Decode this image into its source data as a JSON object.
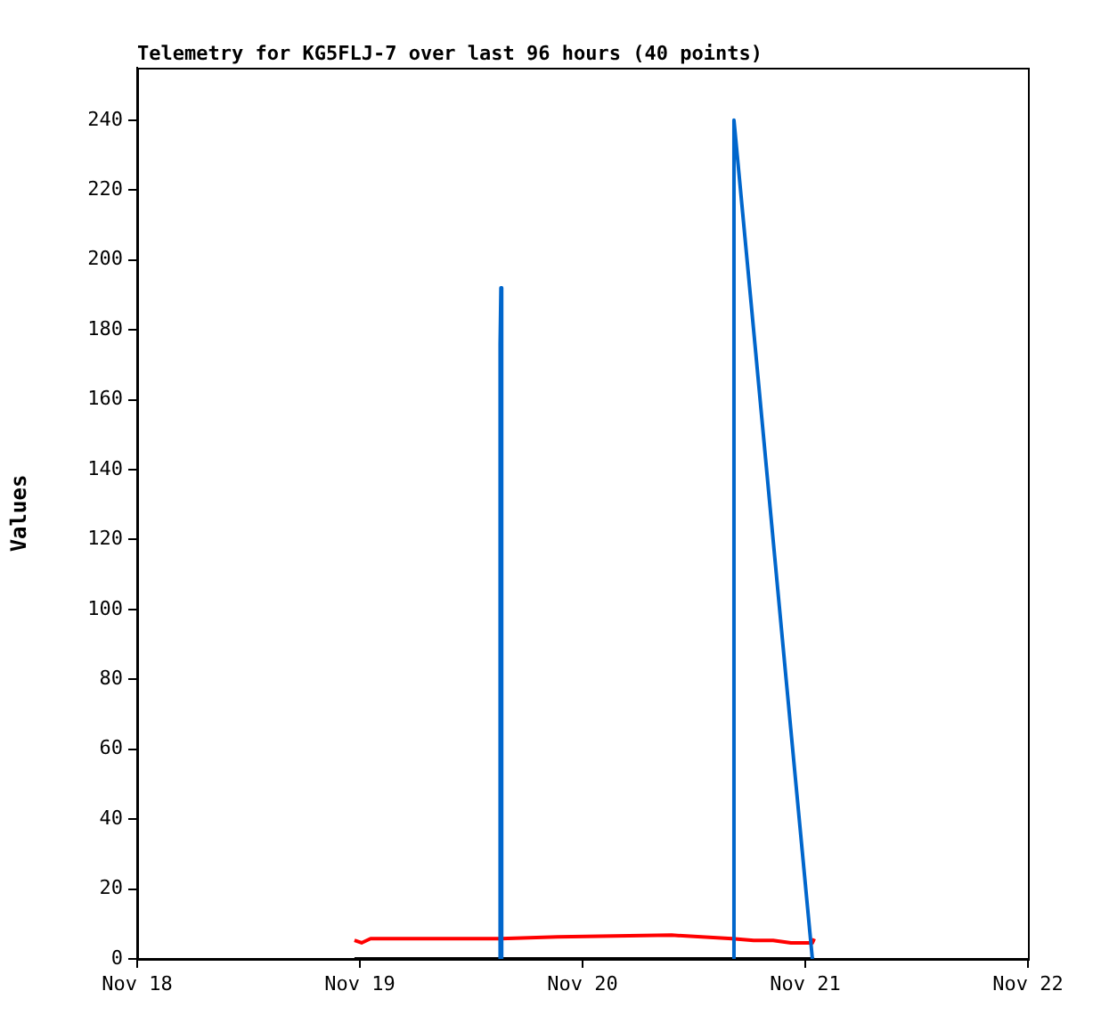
{
  "chart_data": {
    "type": "line",
    "title": "Telemetry for KG5FLJ-7 over last 96 hours (40 points)",
    "ylabel": "Values",
    "x": [
      "--11-18T23:25",
      "--11-19T00:11",
      "--11-19T01:09",
      "--11-19T15:02",
      "--11-19T15:07",
      "--11-19T15:12",
      "--11-19T15:17",
      "--11-19T21:19",
      "--11-20T09:36",
      "--11-20T16:08",
      "--11-20T16:19",
      "--11-20T18:26",
      "--11-20T20:32",
      "--11-20T22:28",
      "--11-21T00:46",
      "--11-21T00:58"
    ],
    "series": [
      {
        "color": "#0066cc",
        "values": [
          null,
          null,
          null,
          0,
          176,
          192,
          0,
          null,
          null,
          0,
          240,
          180,
          120,
          65,
          0,
          null
        ]
      },
      {
        "color": "#000000",
        "values": [
          0,
          0,
          0,
          0,
          0,
          0,
          0,
          0,
          0,
          0,
          0,
          0,
          0,
          0,
          0,
          0
        ]
      },
      {
        "color": "#ff0000",
        "values": [
          5.3,
          4.6,
          5.8,
          5.8,
          5.8,
          5.8,
          5.8,
          6.3,
          6.8,
          5.8,
          5.8,
          5.3,
          5.3,
          4.6,
          4.6,
          5.8
        ]
      }
    ],
    "xlim": [
      "--11-18",
      "--11-22"
    ],
    "xticks": [
      {
        "value": "--11-18",
        "label": "Nov 18"
      },
      {
        "value": "--11-19",
        "label": "Nov 19"
      },
      {
        "value": "--11-20",
        "label": "Nov 20"
      },
      {
        "value": "--11-21",
        "label": "Nov 21"
      },
      {
        "value": "--11-22",
        "label": "Nov 22"
      }
    ],
    "ylim": [
      0,
      255
    ],
    "yticks": [
      0,
      20,
      40,
      60,
      80,
      100,
      120,
      140,
      160,
      180,
      200,
      220,
      240
    ]
  }
}
